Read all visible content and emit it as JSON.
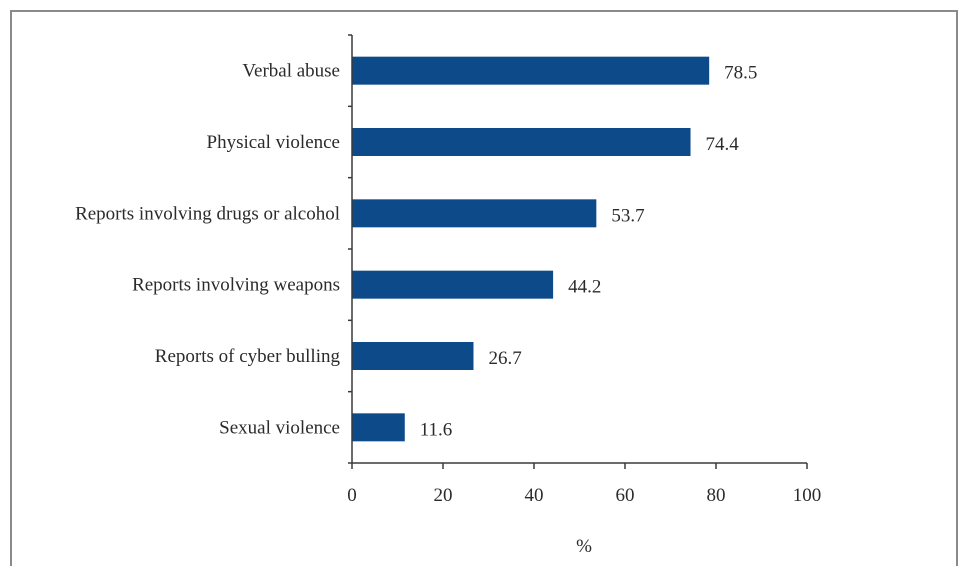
{
  "chart_data": {
    "type": "bar",
    "orientation": "horizontal",
    "categories": [
      "Verbal abuse",
      "Physical violence",
      "Reports involving drugs or alcohol",
      "Reports involving weapons",
      "Reports of cyber bulling",
      "Sexual violence"
    ],
    "values": [
      78.5,
      74.4,
      53.7,
      44.2,
      26.7,
      11.6
    ],
    "value_labels": [
      "78.5",
      "74.4",
      "53.7",
      "44.2",
      "26.7",
      "11.6"
    ],
    "xlabel": "%",
    "ylabel": "",
    "xlim": [
      0,
      100
    ],
    "xticks": [
      0,
      20,
      40,
      60,
      80,
      100
    ],
    "grid": false,
    "bar_color": "#0d4a8a"
  }
}
